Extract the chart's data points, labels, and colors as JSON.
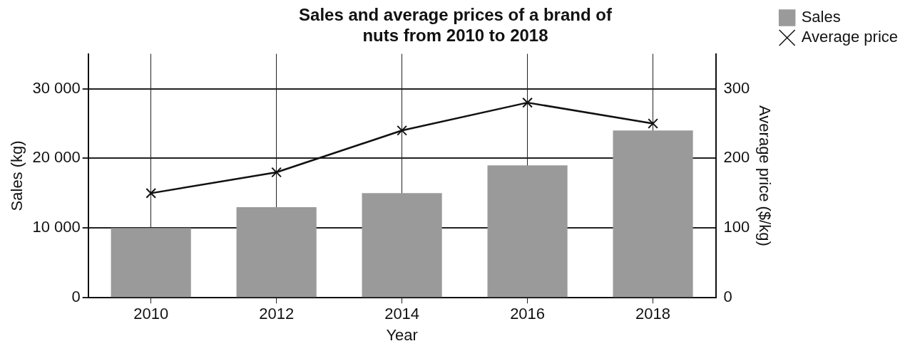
{
  "chart_data": {
    "type": "bar",
    "title": "Sales and average prices of a brand of nuts from 2010 to 2018",
    "xlabel": "Year",
    "ylabel": "Sales (kg)",
    "y2label": "Average price ($/kg)",
    "categories": [
      "2010",
      "2012",
      "2014",
      "2016",
      "2018"
    ],
    "series": [
      {
        "name": "Sales",
        "color": "#9a9a9a",
        "values": [
          10000,
          13000,
          15000,
          19000,
          24000
        ]
      },
      {
        "name": "Average price",
        "type": "line",
        "axis": "y2",
        "color": "#111111",
        "values": [
          150,
          180,
          240,
          280,
          250
        ]
      }
    ],
    "ylim": [
      0,
      35000
    ],
    "yticks": [
      {
        "value": 0,
        "label": "0"
      },
      {
        "value": 10000,
        "label": "10 000"
      },
      {
        "value": 20000,
        "label": "20 000"
      },
      {
        "value": 30000,
        "label": "30 000"
      }
    ],
    "y2lim": [
      0,
      350
    ],
    "y2ticks": [
      0,
      100,
      200,
      300
    ],
    "grid": true,
    "legend": "top right",
    "marker": "cross",
    "line_style": "solid"
  }
}
